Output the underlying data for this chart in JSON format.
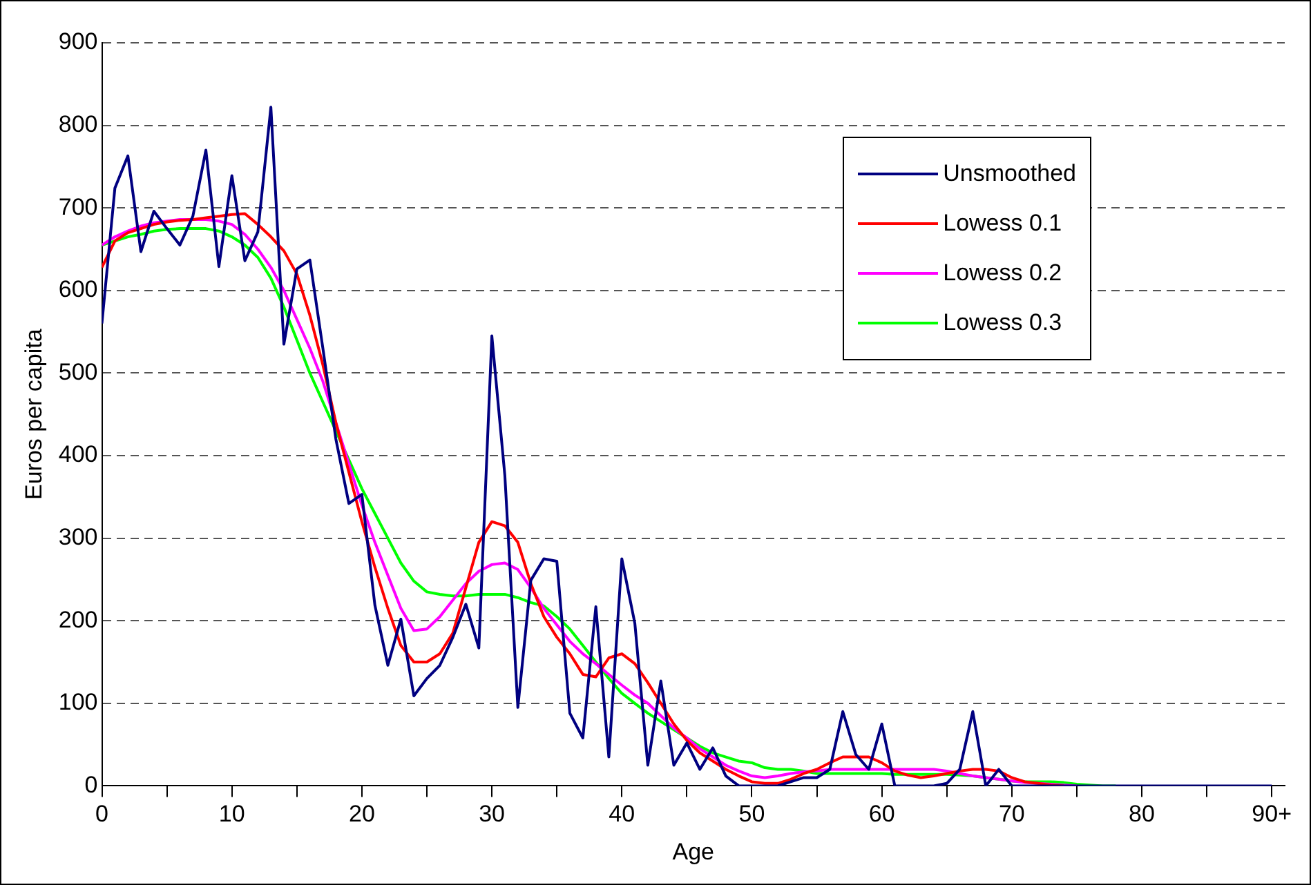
{
  "chart_data": {
    "type": "line",
    "xlabel": "Age",
    "ylabel": "Euros per capita",
    "x": [
      0,
      1,
      2,
      3,
      4,
      5,
      6,
      7,
      8,
      9,
      10,
      11,
      12,
      13,
      14,
      15,
      16,
      17,
      18,
      19,
      20,
      21,
      22,
      23,
      24,
      25,
      26,
      27,
      28,
      29,
      30,
      31,
      32,
      33,
      34,
      35,
      36,
      37,
      38,
      39,
      40,
      41,
      42,
      43,
      44,
      45,
      46,
      47,
      48,
      49,
      50,
      51,
      52,
      53,
      54,
      55,
      56,
      57,
      58,
      59,
      60,
      61,
      62,
      63,
      64,
      65,
      66,
      67,
      68,
      69,
      70,
      71,
      72,
      73,
      74,
      75,
      76,
      77,
      78,
      79,
      80,
      81,
      82,
      83,
      84,
      85,
      86,
      87,
      88,
      89,
      90
    ],
    "series": [
      {
        "name": "Unsmoothed",
        "color": "#000080",
        "values": [
          560,
          724,
          763,
          647,
          696,
          675,
          655,
          690,
          770,
          629,
          739,
          636,
          671,
          822,
          535,
          626,
          637,
          530,
          420,
          342,
          353,
          219,
          146,
          202,
          109,
          130,
          146,
          180,
          220,
          167,
          545,
          376,
          95,
          249,
          275,
          272,
          88,
          58,
          217,
          35,
          275,
          197,
          25,
          127,
          25,
          52,
          20,
          46,
          12,
          0,
          0,
          0,
          0,
          5,
          10,
          10,
          20,
          90,
          38,
          20,
          75,
          0,
          0,
          0,
          0,
          3,
          20,
          90,
          0,
          20,
          0,
          0,
          0,
          0,
          0,
          0,
          0,
          0,
          0,
          0,
          0,
          0,
          0,
          0,
          0,
          0,
          0,
          0,
          0,
          0,
          0
        ]
      },
      {
        "name": "Lowess 0.1",
        "color": "#ff0000",
        "values": [
          628,
          660,
          670,
          675,
          680,
          683,
          685,
          686,
          688,
          690,
          692,
          693,
          680,
          665,
          648,
          620,
          570,
          510,
          440,
          380,
          320,
          265,
          215,
          170,
          150,
          150,
          160,
          185,
          240,
          295,
          320,
          315,
          295,
          245,
          205,
          180,
          160,
          135,
          132,
          155,
          160,
          148,
          125,
          100,
          75,
          55,
          40,
          30,
          20,
          12,
          5,
          3,
          3,
          8,
          15,
          20,
          28,
          35,
          35,
          35,
          28,
          18,
          13,
          10,
          12,
          15,
          18,
          20,
          20,
          18,
          10,
          5,
          3,
          1,
          0,
          null,
          null,
          null,
          null,
          null,
          null,
          null,
          null,
          null,
          null,
          null,
          null,
          null,
          null,
          null,
          null
        ]
      },
      {
        "name": "Lowess 0.2",
        "color": "#ff00ff",
        "values": [
          655,
          665,
          672,
          678,
          682,
          684,
          686,
          686,
          686,
          684,
          680,
          668,
          650,
          628,
          600,
          565,
          530,
          490,
          440,
          390,
          340,
          295,
          255,
          215,
          188,
          190,
          205,
          225,
          245,
          260,
          268,
          270,
          262,
          240,
          215,
          195,
          175,
          160,
          148,
          135,
          122,
          110,
          100,
          85,
          70,
          58,
          45,
          35,
          25,
          18,
          12,
          10,
          12,
          15,
          17,
          18,
          20,
          20,
          20,
          20,
          20,
          20,
          20,
          20,
          20,
          18,
          15,
          12,
          10,
          8,
          6,
          4,
          3,
          2,
          1,
          0,
          null,
          null,
          null,
          null,
          null,
          null,
          null,
          null,
          null,
          null,
          null,
          null,
          null,
          null,
          null
        ]
      },
      {
        "name": "Lowess 0.3",
        "color": "#00ff00",
        "values": [
          655,
          660,
          665,
          668,
          672,
          674,
          675,
          675,
          675,
          672,
          665,
          655,
          640,
          615,
          580,
          540,
          500,
          465,
          430,
          395,
          360,
          330,
          300,
          270,
          248,
          235,
          232,
          230,
          230,
          232,
          232,
          232,
          228,
          222,
          218,
          205,
          190,
          170,
          150,
          130,
          112,
          100,
          88,
          78,
          68,
          58,
          48,
          40,
          35,
          30,
          28,
          22,
          20,
          20,
          18,
          15,
          15,
          15,
          15,
          15,
          15,
          14,
          14,
          14,
          14,
          14,
          13,
          12,
          10,
          8,
          6,
          5,
          5,
          5,
          4,
          2,
          1,
          0,
          0,
          null,
          null,
          null,
          null,
          null,
          null,
          null,
          null,
          null,
          null,
          null,
          null
        ]
      }
    ],
    "xlim": [
      0,
      91
    ],
    "xticks": [
      0,
      {
        "value": 5,
        "label": null
      },
      10,
      {
        "value": 15,
        "label": null
      },
      20,
      {
        "value": 25,
        "label": null
      },
      30,
      {
        "value": 35,
        "label": null
      },
      40,
      {
        "value": 45,
        "label": null
      },
      50,
      {
        "value": 55,
        "label": null
      },
      60,
      {
        "value": 65,
        "label": null
      },
      70,
      {
        "value": 75,
        "label": null
      },
      80,
      {
        "value": 85,
        "label": null
      },
      {
        "value": 90,
        "label": "90+"
      }
    ],
    "ylim": [
      0,
      900
    ],
    "yticks": [
      0,
      100,
      200,
      300,
      400,
      500,
      600,
      700,
      800,
      900
    ],
    "grid": "y",
    "legend": "top right",
    "marker": "none",
    "line_style": "solid"
  }
}
